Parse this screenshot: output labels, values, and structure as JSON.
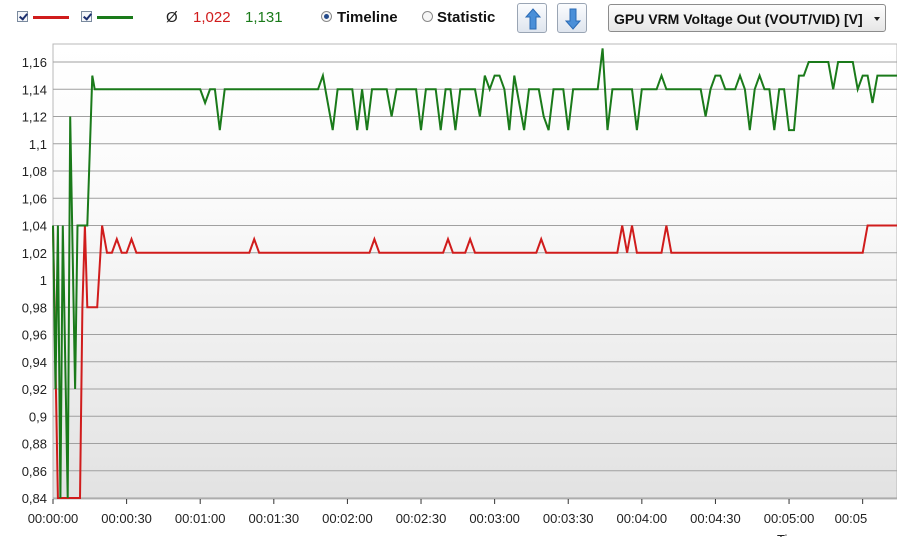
{
  "toolbar": {
    "series1_checkbox": true,
    "series2_checkbox": true,
    "avg_symbol": "Ø",
    "avg_series1": "1,022",
    "avg_series2": "1,131",
    "radio_timeline": "Timeline",
    "radio_statistic": "Statistic",
    "selected_view": "Timeline",
    "sensor_select": "GPU VRM Voltage Out (VOUT/VID) [V]",
    "icons": [
      "checkbox-icon",
      "arrow-up-icon",
      "arrow-down-icon",
      "chevron-down-icon"
    ]
  },
  "colors": {
    "series1": "#d01c1c",
    "series2": "#1a7a1a",
    "grid": "#a0a0a0"
  },
  "chart_data": {
    "type": "line",
    "y_ticks": [
      "0,84",
      "0,86",
      "0,88",
      "0,9",
      "0,92",
      "0,94",
      "0,96",
      "0,98",
      "1",
      "1,02",
      "1,04",
      "1,06",
      "1,08",
      "1,1",
      "1,12",
      "1,14",
      "1,16"
    ],
    "x_ticks": [
      "00:00:00",
      "00:00:30",
      "00:01:00",
      "00:01:30",
      "00:02:00",
      "00:02:30",
      "00:03:00",
      "00:03:30",
      "00:04:00",
      "00:04:30",
      "00:05:00",
      "00:05"
    ],
    "ylim": [
      0.84,
      1.17
    ],
    "xlim": [
      0,
      344
    ],
    "xlabel_partial": "Ti",
    "grid": true,
    "series": [
      {
        "color": "#d01c1c",
        "points": [
          [
            0,
            1.04
          ],
          [
            2,
            0.84
          ],
          [
            10,
            0.84
          ],
          [
            11,
            0.84
          ],
          [
            12,
            0.98
          ],
          [
            13,
            1.04
          ],
          [
            14,
            0.98
          ],
          [
            18,
            0.98
          ],
          [
            20,
            1.04
          ],
          [
            22,
            1.02
          ],
          [
            24,
            1.02
          ],
          [
            26,
            1.03
          ],
          [
            28,
            1.02
          ],
          [
            30,
            1.02
          ],
          [
            32,
            1.03
          ],
          [
            34,
            1.02
          ],
          [
            80,
            1.02
          ],
          [
            82,
            1.03
          ],
          [
            84,
            1.02
          ],
          [
            129,
            1.02
          ],
          [
            131,
            1.03
          ],
          [
            133,
            1.02
          ],
          [
            159,
            1.02
          ],
          [
            161,
            1.03
          ],
          [
            163,
            1.02
          ],
          [
            168,
            1.02
          ],
          [
            170,
            1.03
          ],
          [
            172,
            1.02
          ],
          [
            197,
            1.02
          ],
          [
            199,
            1.03
          ],
          [
            201,
            1.02
          ],
          [
            230,
            1.02
          ],
          [
            232,
            1.04
          ],
          [
            234,
            1.02
          ],
          [
            236,
            1.04
          ],
          [
            238,
            1.02
          ],
          [
            248,
            1.02
          ],
          [
            250,
            1.04
          ],
          [
            252,
            1.02
          ],
          [
            330,
            1.02
          ],
          [
            332,
            1.04
          ],
          [
            344,
            1.04
          ]
        ]
      },
      {
        "color": "#1a7a1a",
        "points": [
          [
            0,
            1.04
          ],
          [
            1,
            0.92
          ],
          [
            2,
            1.04
          ],
          [
            3,
            0.84
          ],
          [
            4,
            1.04
          ],
          [
            6,
            0.84
          ],
          [
            7,
            1.12
          ],
          [
            9,
            0.92
          ],
          [
            10,
            1.04
          ],
          [
            14,
            1.04
          ],
          [
            16,
            1.15
          ],
          [
            17,
            1.14
          ],
          [
            60,
            1.14
          ],
          [
            62,
            1.13
          ],
          [
            64,
            1.14
          ],
          [
            66,
            1.14
          ],
          [
            68,
            1.11
          ],
          [
            70,
            1.14
          ],
          [
            108,
            1.14
          ],
          [
            110,
            1.15
          ],
          [
            112,
            1.13
          ],
          [
            114,
            1.11
          ],
          [
            116,
            1.14
          ],
          [
            122,
            1.14
          ],
          [
            124,
            1.11
          ],
          [
            126,
            1.14
          ],
          [
            128,
            1.11
          ],
          [
            130,
            1.14
          ],
          [
            136,
            1.14
          ],
          [
            138,
            1.12
          ],
          [
            140,
            1.14
          ],
          [
            148,
            1.14
          ],
          [
            150,
            1.11
          ],
          [
            152,
            1.14
          ],
          [
            156,
            1.14
          ],
          [
            158,
            1.11
          ],
          [
            160,
            1.14
          ],
          [
            162,
            1.14
          ],
          [
            164,
            1.11
          ],
          [
            166,
            1.14
          ],
          [
            172,
            1.14
          ],
          [
            174,
            1.12
          ],
          [
            176,
            1.15
          ],
          [
            178,
            1.14
          ],
          [
            180,
            1.15
          ],
          [
            182,
            1.15
          ],
          [
            184,
            1.14
          ],
          [
            186,
            1.11
          ],
          [
            188,
            1.15
          ],
          [
            190,
            1.13
          ],
          [
            192,
            1.11
          ],
          [
            194,
            1.14
          ],
          [
            198,
            1.14
          ],
          [
            200,
            1.12
          ],
          [
            202,
            1.11
          ],
          [
            204,
            1.14
          ],
          [
            208,
            1.14
          ],
          [
            210,
            1.11
          ],
          [
            212,
            1.14
          ],
          [
            222,
            1.14
          ],
          [
            224,
            1.17
          ],
          [
            226,
            1.11
          ],
          [
            228,
            1.14
          ],
          [
            236,
            1.14
          ],
          [
            238,
            1.11
          ],
          [
            240,
            1.14
          ],
          [
            246,
            1.14
          ],
          [
            248,
            1.15
          ],
          [
            250,
            1.14
          ],
          [
            264,
            1.14
          ],
          [
            266,
            1.12
          ],
          [
            268,
            1.14
          ],
          [
            270,
            1.15
          ],
          [
            272,
            1.15
          ],
          [
            274,
            1.14
          ],
          [
            278,
            1.14
          ],
          [
            280,
            1.15
          ],
          [
            282,
            1.14
          ],
          [
            284,
            1.11
          ],
          [
            286,
            1.14
          ],
          [
            288,
            1.15
          ],
          [
            290,
            1.14
          ],
          [
            292,
            1.14
          ],
          [
            294,
            1.11
          ],
          [
            296,
            1.14
          ],
          [
            298,
            1.14
          ],
          [
            300,
            1.11
          ],
          [
            302,
            1.11
          ],
          [
            304,
            1.15
          ],
          [
            306,
            1.15
          ],
          [
            308,
            1.16
          ],
          [
            316,
            1.16
          ],
          [
            318,
            1.14
          ],
          [
            320,
            1.16
          ],
          [
            326,
            1.16
          ],
          [
            328,
            1.14
          ],
          [
            330,
            1.15
          ],
          [
            332,
            1.15
          ],
          [
            334,
            1.13
          ],
          [
            336,
            1.15
          ],
          [
            344,
            1.15
          ]
        ]
      }
    ]
  }
}
